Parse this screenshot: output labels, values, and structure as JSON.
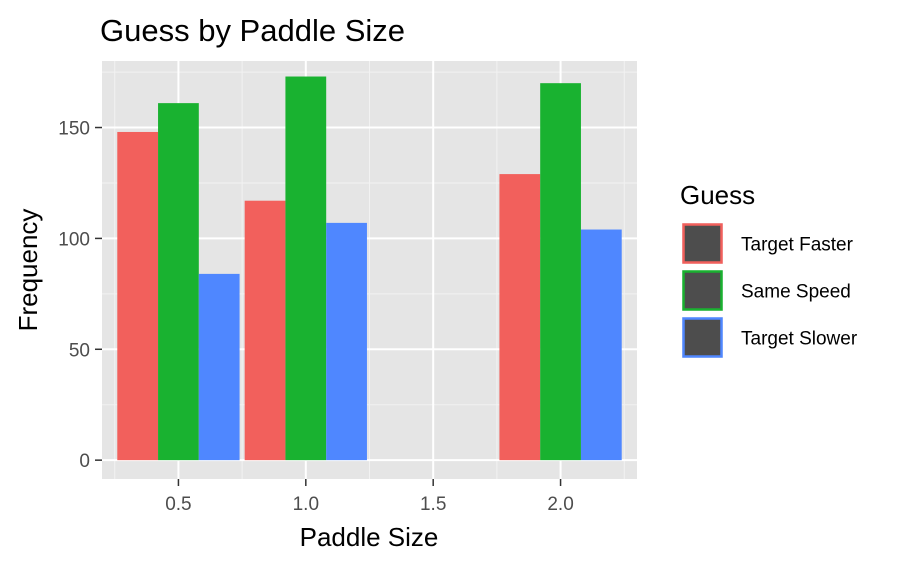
{
  "chart_data": {
    "type": "bar",
    "title": "Guess by Paddle Size",
    "xlabel": "Paddle Size",
    "ylabel": "Frequency",
    "x_positions": [
      0.5,
      1.0,
      1.5,
      2.0
    ],
    "bar_width": 0.48,
    "xlim": [
      0.2,
      2.3
    ],
    "ylim": [
      -8.5,
      180
    ],
    "x_ticks": [
      0.5,
      1.0,
      1.5,
      2.0
    ],
    "x_tick_labels": [
      "0.5",
      "1.0",
      "1.5",
      "2.0"
    ],
    "y_ticks": [
      0,
      50,
      100,
      150
    ],
    "y_tick_labels": [
      "0",
      "50",
      "100",
      "150"
    ],
    "panel_background": "#e5e5e5",
    "grid": true,
    "legend": {
      "title": "Guess",
      "position": "right",
      "key_fill": "#4d4d4d"
    },
    "series": [
      {
        "name": "Target Faster",
        "color": "#f2605c",
        "values": [
          148,
          117,
          null,
          129
        ]
      },
      {
        "name": "Same Speed",
        "color": "#19b230",
        "values": [
          161,
          173,
          null,
          170
        ]
      },
      {
        "name": "Target Slower",
        "color": "#4f87ff",
        "values": [
          84,
          107,
          null,
          104
        ]
      }
    ]
  }
}
